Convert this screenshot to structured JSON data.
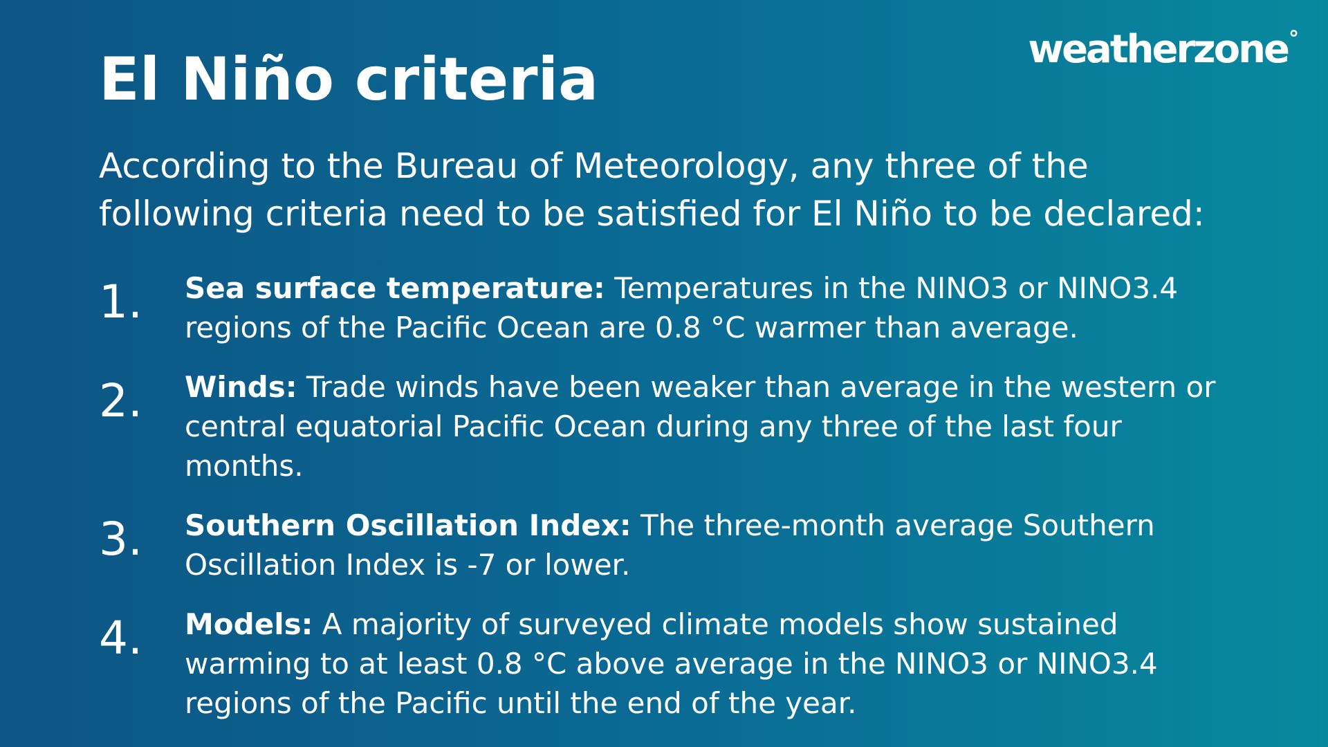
{
  "brand": {
    "logo_text": "weatherzone",
    "logo_degree": "°"
  },
  "title": "El Niño criteria",
  "intro": "According to the Bureau of Meteorology, any three of the following criteria need to be satisfied for El Niño to be declared:",
  "criteria": [
    {
      "number": "1.",
      "heading": "Sea surface temperature:",
      "text": "Temperatures in the NINO3 or NINO3.4 regions of the Pacific Ocean are 0.8 °C warmer than average."
    },
    {
      "number": "2.",
      "heading": "Winds:",
      "text": "Trade winds have been weaker than average in the western or central equatorial Pacific Ocean during any three of the last four months."
    },
    {
      "number": "3.",
      "heading": "Southern Oscillation Index:",
      "text": "The three-month average Southern Oscillation Index is -7 or lower."
    },
    {
      "number": "4.",
      "heading": "Models:",
      "text": "A majority of surveyed climate models show sustained warming to at least 0.8 °C above average in the NINO3 or NINO3.4 regions of the Pacific until the end of the year."
    }
  ]
}
